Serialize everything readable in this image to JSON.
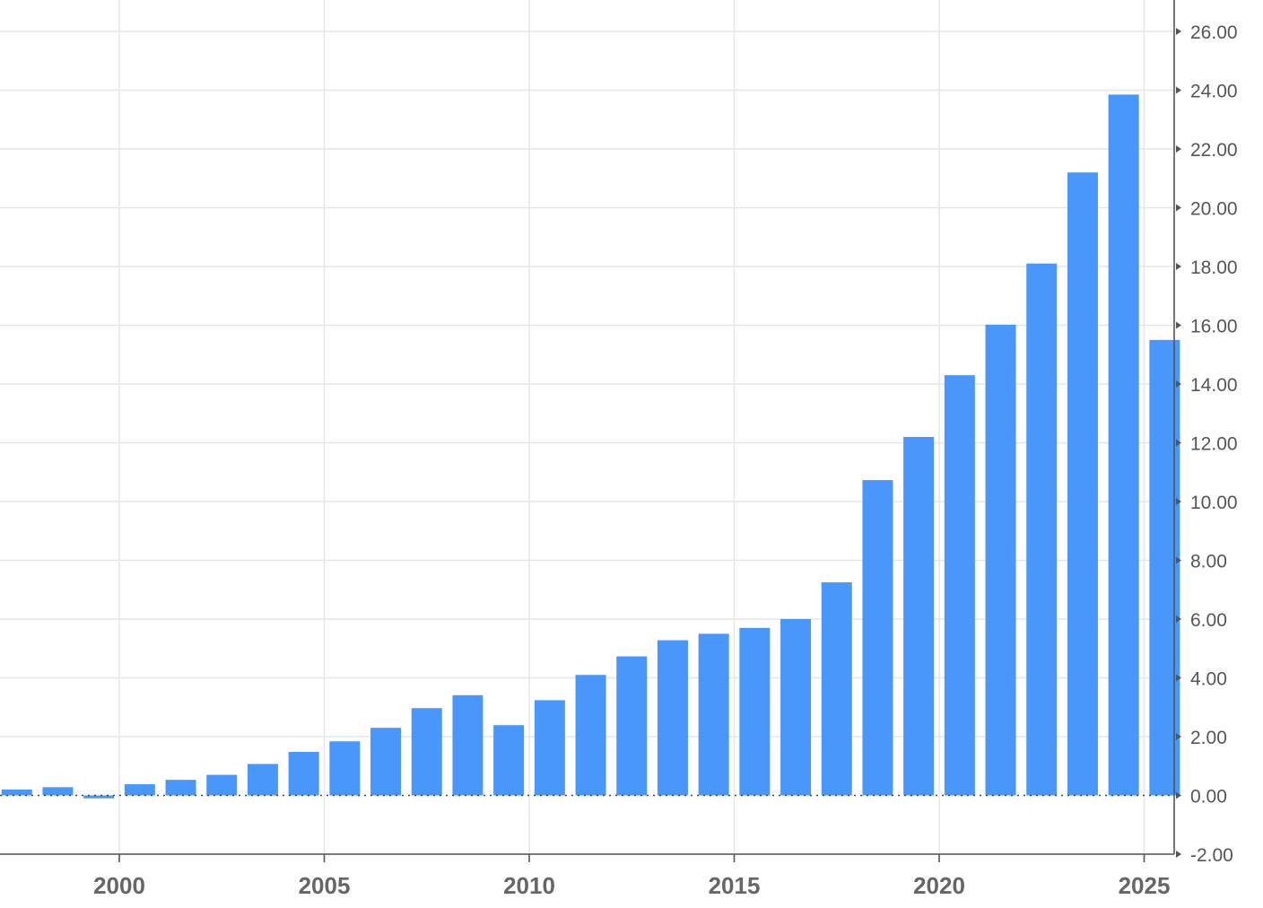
{
  "chart_data": {
    "type": "bar",
    "title": "",
    "xlabel": "",
    "ylabel": "",
    "ylim": [
      -2,
      27
    ],
    "xlim": [
      1997.1,
      2025.75
    ],
    "y_ticks": [
      -2,
      0,
      2,
      4,
      6,
      8,
      10,
      12,
      14,
      16,
      18,
      20,
      22,
      24,
      26
    ],
    "y_tick_labels": [
      "-2.00",
      "0.00",
      "2.00",
      "4.00",
      "6.00",
      "8.00",
      "10.00",
      "12.00",
      "14.00",
      "16.00",
      "18.00",
      "20.00",
      "22.00",
      "24.00",
      "26.00"
    ],
    "x_ticks": [
      2000,
      2005,
      2010,
      2015,
      2020,
      2025
    ],
    "x_tick_labels": [
      "2000",
      "2005",
      "2010",
      "2015",
      "2020",
      "2025"
    ],
    "y_axis_position": "right",
    "grid": true,
    "legend": false,
    "bar_color": "#4a97fc",
    "categories": [
      1997,
      1998,
      1999,
      2000,
      2001,
      2002,
      2003,
      2004,
      2005,
      2006,
      2007,
      2008,
      2009,
      2010,
      2011,
      2012,
      2013,
      2014,
      2015,
      2016,
      2017,
      2018,
      2019,
      2020,
      2021,
      2022,
      2023,
      2024,
      2025
    ],
    "values": [
      0.2,
      0.28,
      -0.1,
      0.38,
      0.53,
      0.7,
      1.07,
      1.48,
      1.84,
      2.3,
      2.97,
      3.41,
      2.39,
      3.24,
      4.1,
      4.73,
      5.28,
      5.5,
      5.7,
      6.0,
      7.25,
      10.73,
      12.2,
      14.3,
      16.02,
      18.1,
      21.2,
      23.85,
      15.5
    ]
  }
}
